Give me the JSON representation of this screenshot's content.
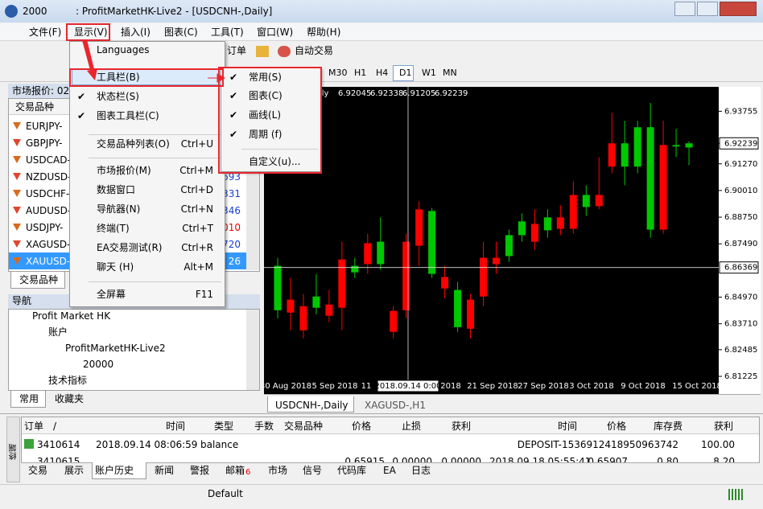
{
  "window": {
    "account": "2000",
    "title": ": ProfitMarketHK-Live2 - [USDCNH-,Daily]"
  },
  "menubar": [
    "文件(F)",
    "显示(V)",
    "插入(I)",
    "图表(C)",
    "工具(T)",
    "窗口(W)",
    "帮助(H)"
  ],
  "toolbar": {
    "order": "订单",
    "autotrade": "自动交易"
  },
  "timeframes": [
    "M30",
    "H1",
    "H4",
    "D1",
    "W1",
    "MN"
  ],
  "market_watch": {
    "title": "市场报价: 02:",
    "column": "交易品种",
    "rows": [
      [
        "EURJPY-"
      ],
      [
        "GBPJPY-"
      ],
      [
        "USDCAD-"
      ],
      [
        "NZDUSD-",
        "693"
      ],
      [
        "USDCHF-",
        "331"
      ],
      [
        "AUDUSD-",
        "346"
      ],
      [
        "USDJPY-",
        "010"
      ],
      [
        "XAGUSD-",
        "720"
      ],
      [
        "XAUUSD-",
        "26"
      ]
    ],
    "tab": "交易品种"
  },
  "navigator": {
    "title": "导航",
    "items": [
      "Profit Market HK",
      "账户",
      "ProfitMarketHK-Live2",
      "20000",
      "技术指标"
    ],
    "tabs": [
      "常用",
      "收藏夹"
    ]
  },
  "view_menu": [
    {
      "label": "Languages"
    },
    {
      "label": "工具栏(B)"
    },
    {
      "label": "状态栏(S)"
    },
    {
      "label": "图表工具栏(C)"
    },
    {
      "label": "交易品种列表(O)",
      "shortcut": "Ctrl+U"
    },
    {
      "label": "市场报价(M)",
      "shortcut": "Ctrl+M"
    },
    {
      "label": "数据窗口",
      "shortcut": "Ctrl+D"
    },
    {
      "label": "导航器(N)",
      "shortcut": "Ctrl+N"
    },
    {
      "label": "终端(T)",
      "shortcut": "Ctrl+T"
    },
    {
      "label": "EA交易测试(R)",
      "shortcut": "Ctrl+R"
    },
    {
      "label": "聊天 (H)",
      "shortcut": "Alt+M"
    },
    {
      "label": "全屏幕",
      "shortcut": "F11"
    }
  ],
  "toolbars_submenu": [
    "常用(S)",
    "图表(C)",
    "画线(L)",
    "周期 (f)",
    "自定义(u)..."
  ],
  "chart_data": {
    "type": "candlestick",
    "info_prefix": "ily",
    "open": [
      6.8435,
      6.8485,
      6.8454,
      6.8447,
      6.8462,
      6.8675,
      6.8614,
      6.8752,
      6.8653,
      6.8432,
      6.8759,
      6.8912,
      6.8607,
      6.8592,
      6.8355,
      6.8485,
      6.8683,
      6.8683,
      6.8691,
      6.879,
      6.8843,
      6.8813,
      6.8874,
      6.898,
      6.8923,
      6.898,
      6.9224,
      6.9114,
      6.9114,
      6.8816,
      6.9216,
      6.9209,
      6.92045
    ],
    "high": [
      6.8683,
      6.8588,
      6.8512,
      6.8607,
      6.8531,
      6.8759,
      6.8683,
      6.8797,
      6.8874,
      6.8454,
      6.8797,
      6.895,
      6.8919,
      6.8645,
      6.8569,
      6.8512,
      6.8759,
      6.8759,
      6.8816,
      6.8893,
      6.8912,
      6.8912,
      6.8931,
      6.9045,
      6.9026,
      6.9159,
      6.9369,
      6.9331,
      6.9331,
      6.9415,
      6.9331,
      6.9293,
      6.92338
    ],
    "low": [
      6.8397,
      6.834,
      6.8302,
      6.8416,
      6.8378,
      6.834,
      6.8588,
      6.8607,
      6.8626,
      6.8302,
      6.8397,
      6.8645,
      6.8588,
      6.8493,
      6.8333,
      6.8302,
      6.8454,
      6.8607,
      6.8664,
      6.8759,
      6.8721,
      6.8778,
      6.879,
      6.8797,
      6.8881,
      6.8912,
      6.9083,
      6.9026,
      6.9083,
      6.8778,
      6.8797,
      6.9159,
      6.91205
    ],
    "close": [
      6.8645,
      6.8424,
      6.834,
      6.85,
      6.8409,
      6.8447,
      6.8645,
      6.8653,
      6.8759,
      6.8333,
      6.8435,
      6.874,
      6.8904,
      6.8538,
      6.8531,
      6.8348,
      6.85,
      6.8653,
      6.879,
      6.8855,
      6.8759,
      6.8874,
      6.882,
      6.882,
      6.898,
      6.8927,
      6.9114,
      6.9224,
      6.93,
      6.93,
      6.8816,
      6.9216,
      6.92239
    ],
    "up_color": "#00c800",
    "down_color": "#ff0000",
    "ylim": [
      6.8039,
      6.9491
    ],
    "yticks": [
      6.93755,
      {
        "value": 6.9127,
        "label": "6.91270"
      },
      {
        "value": 6.9001,
        "label": "6.90010"
      },
      {
        "value": 6.8875,
        "label": "6.88750"
      },
      {
        "value": 6.8749,
        "label": "6.87490"
      },
      {
        "value": 6.8497,
        "label": "6.84970"
      },
      {
        "value": 6.8371,
        "label": "6.83710"
      },
      6.82485,
      6.81225
    ],
    "crosshair": {
      "price": 6.86369,
      "time": "2018.09.14 0:00"
    },
    "x_labels": [
      "30 Aug 2018",
      "5 Sep 2018",
      "11",
      "2018",
      "21 Sep 2018",
      "27 Sep 2018",
      "3 Oct 2018",
      "9 Oct 2018",
      "15 Oct 2018"
    ]
  },
  "chart_tabs": [
    "USDCNH-,Daily",
    "XAGUSD-,H1"
  ],
  "terminal": {
    "label": "终端",
    "columns": [
      "订单",
      "/",
      "时间",
      "类型",
      "手数",
      "交易品种",
      "价格",
      "止损",
      "获利",
      "时间",
      "价格",
      "库存费",
      "获利"
    ],
    "rows": [
      [
        "3410614",
        "2018.09.14 08:06:59",
        "balance",
        "DEPOSIT-1536912418950963742",
        "100.00"
      ],
      [
        "3410615",
        "0.65915",
        "0.00000",
        "0.00000",
        "2018.09.18 05:55:41",
        "0.65907",
        "0.80",
        "8.20"
      ]
    ],
    "tabs": [
      "交易",
      "展示",
      "账户历史",
      "新闻",
      "警报",
      "邮箱",
      "市场",
      "信号",
      "代码库",
      "EA",
      "日志"
    ],
    "mail_count": "6"
  },
  "status_bar": {
    "profile": "Default"
  }
}
